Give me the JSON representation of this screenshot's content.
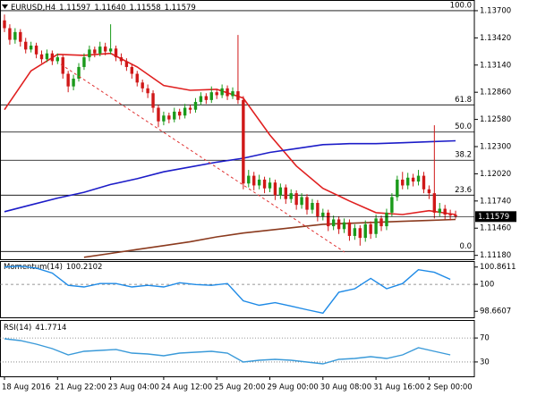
{
  "chart_data": [
    {
      "type": "candlestick",
      "symbol": "EURUSD,H4",
      "ohlc_labels": [
        "1.11597",
        "1.11640",
        "1.11558",
        "1.11579"
      ],
      "up_color": "#1a9a1a",
      "down_color": "#d01818",
      "categories": [
        "18 Aug 2016",
        null,
        null,
        null,
        null,
        null,
        null,
        null,
        null,
        null,
        "21 Aug 22:00",
        null,
        null,
        null,
        null,
        null,
        null,
        null,
        null,
        null,
        "23 Aug 04:00",
        null,
        null,
        null,
        null,
        null,
        null,
        null,
        null,
        null,
        "24 Aug 12:00",
        null,
        null,
        null,
        null,
        null,
        null,
        null,
        null,
        null,
        "25 Aug 20:00",
        null,
        null,
        null,
        null,
        null,
        null,
        null,
        null,
        null,
        "29 Aug 00:00",
        null,
        null,
        null,
        null,
        null,
        null,
        null,
        null,
        null,
        "30 Aug 08:00",
        null,
        null,
        null,
        null,
        null,
        null,
        null,
        null,
        null,
        "31 Aug 16:00",
        null,
        null,
        null,
        null,
        null,
        null,
        null,
        null,
        null,
        "2 Sep 00:00",
        null,
        null,
        null,
        null,
        null
      ],
      "open": [
        1.136,
        1.1352,
        1.134,
        1.1348,
        1.1338,
        1.133,
        1.1334,
        1.1325,
        1.132,
        1.1326,
        1.1318,
        1.1322,
        1.1305,
        1.1292,
        1.13,
        1.1312,
        1.1322,
        1.133,
        1.1326,
        1.1333,
        1.1328,
        1.1331,
        1.1322,
        1.1318,
        1.1312,
        1.1305,
        1.1296,
        1.129,
        1.1285,
        1.127,
        1.1256,
        1.1262,
        1.1258,
        1.1266,
        1.1262,
        1.127,
        1.1268,
        1.1276,
        1.1282,
        1.1278,
        1.1286,
        1.1283,
        1.129,
        1.1282,
        1.1287,
        1.1278,
        1.1192,
        1.12,
        1.119,
        1.1196,
        1.1187,
        1.1193,
        1.118,
        1.1188,
        1.1176,
        1.1182,
        1.117,
        1.1178,
        1.1165,
        1.1172,
        1.1158,
        1.1162,
        1.1148,
        1.1155,
        1.1145,
        1.1152,
        1.1138,
        1.1146,
        1.1136,
        1.115,
        1.114,
        1.1156,
        1.1148,
        1.1162,
        1.1178,
        1.1196,
        1.119,
        1.1198,
        1.1194,
        1.12,
        1.1186,
        1.1182,
        1.1162,
        1.1166,
        1.116,
        1.11597
      ],
      "high": [
        1.1366,
        1.1356,
        1.1352,
        1.1351,
        1.1342,
        1.1338,
        1.1337,
        1.1329,
        1.133,
        1.1329,
        1.1326,
        1.1325,
        1.1308,
        1.1304,
        1.1316,
        1.1326,
        1.1334,
        1.1333,
        1.1338,
        1.1337,
        1.1356,
        1.1334,
        1.1326,
        1.1321,
        1.1315,
        1.1308,
        1.1299,
        1.1294,
        1.1288,
        1.1273,
        1.1266,
        1.1265,
        1.127,
        1.1269,
        1.1274,
        1.1273,
        1.128,
        1.1286,
        1.1285,
        1.1292,
        1.1289,
        1.1294,
        1.1293,
        1.1291,
        1.1345,
        1.1282,
        1.1206,
        1.1204,
        1.1201,
        1.1199,
        1.1198,
        1.1196,
        1.1192,
        1.1191,
        1.1186,
        1.1185,
        1.1182,
        1.1181,
        1.1176,
        1.1175,
        1.1166,
        1.1165,
        1.1159,
        1.1158,
        1.1156,
        1.1155,
        1.115,
        1.1149,
        1.1154,
        1.1153,
        1.116,
        1.1159,
        1.1166,
        1.1182,
        1.12,
        1.1204,
        1.1203,
        1.1202,
        1.1206,
        1.1204,
        1.119,
        1.1252,
        1.1172,
        1.117,
        1.1165,
        1.1164
      ],
      "low": [
        1.1348,
        1.1335,
        1.1336,
        1.1333,
        1.1326,
        1.1327,
        1.1321,
        1.1316,
        1.1317,
        1.1314,
        1.1315,
        1.13,
        1.1286,
        1.1288,
        1.1297,
        1.1309,
        1.1318,
        1.1322,
        1.1323,
        1.1324,
        1.1325,
        1.1318,
        1.1314,
        1.1308,
        1.13,
        1.1292,
        1.1286,
        1.128,
        1.1265,
        1.125,
        1.1252,
        1.1254,
        1.1255,
        1.1258,
        1.1259,
        1.1264,
        1.1265,
        1.1273,
        1.1274,
        1.1275,
        1.1279,
        1.128,
        1.1278,
        1.1279,
        1.1274,
        1.1186,
        1.1188,
        1.1185,
        1.1186,
        1.1182,
        1.1183,
        1.1175,
        1.1176,
        1.1171,
        1.1172,
        1.1165,
        1.1166,
        1.116,
        1.1161,
        1.1153,
        1.1154,
        1.1143,
        1.1144,
        1.114,
        1.1141,
        1.1133,
        1.1134,
        1.1128,
        1.1132,
        1.1135,
        1.1136,
        1.1143,
        1.1144,
        1.1158,
        1.1174,
        1.1186,
        1.1186,
        1.1189,
        1.119,
        1.1182,
        1.1176,
        1.1156,
        1.1158,
        1.1155,
        1.1154,
        1.11558
      ],
      "close": [
        1.1352,
        1.134,
        1.1348,
        1.1338,
        1.133,
        1.1334,
        1.1325,
        1.132,
        1.1326,
        1.1318,
        1.1322,
        1.1305,
        1.1292,
        1.13,
        1.1312,
        1.1322,
        1.133,
        1.1326,
        1.1333,
        1.1328,
        1.1331,
        1.1322,
        1.1318,
        1.1312,
        1.1305,
        1.1296,
        1.129,
        1.1285,
        1.127,
        1.1256,
        1.1262,
        1.1258,
        1.1266,
        1.1262,
        1.127,
        1.1268,
        1.1276,
        1.1282,
        1.1278,
        1.1286,
        1.1283,
        1.129,
        1.1282,
        1.1287,
        1.1278,
        1.1192,
        1.12,
        1.119,
        1.1196,
        1.1187,
        1.1193,
        1.118,
        1.1188,
        1.1176,
        1.1182,
        1.117,
        1.1178,
        1.1165,
        1.1172,
        1.1158,
        1.1162,
        1.1148,
        1.1155,
        1.1145,
        1.1152,
        1.1138,
        1.1146,
        1.1136,
        1.115,
        1.114,
        1.1156,
        1.1148,
        1.1162,
        1.1178,
        1.1196,
        1.119,
        1.1198,
        1.1194,
        1.12,
        1.1186,
        1.1182,
        1.1162,
        1.1166,
        1.116,
        1.11597,
        1.11579
      ],
      "overlays": [
        {
          "color": "#e02020",
          "x": [
            0,
            5,
            10,
            15,
            20,
            25,
            30,
            35,
            40,
            45,
            50,
            55,
            60,
            65,
            70,
            75,
            80,
            85
          ],
          "values": [
            1.1268,
            1.1308,
            1.1325,
            1.1324,
            1.1326,
            1.1312,
            1.1293,
            1.1288,
            1.1289,
            1.128,
            1.1242,
            1.121,
            1.1187,
            1.1174,
            1.1162,
            1.116,
            1.1164,
            1.116
          ]
        },
        {
          "color": "#1c1cc8",
          "x": [
            0,
            5,
            10,
            15,
            20,
            25,
            30,
            35,
            40,
            45,
            50,
            55,
            60,
            65,
            70,
            75,
            80,
            85
          ],
          "values": [
            1.1163,
            1.117,
            1.1177,
            1.1183,
            1.1191,
            1.1197,
            1.1204,
            1.1209,
            1.1214,
            1.1218,
            1.1224,
            1.1228,
            1.1232,
            1.1233,
            1.1233,
            1.1234,
            1.1235,
            1.1236
          ]
        },
        {
          "color": "#8b3a1e",
          "x": [
            0,
            5,
            10,
            15,
            20,
            25,
            30,
            35,
            40,
            45,
            50,
            55,
            60,
            65,
            70,
            75,
            80,
            85
          ],
          "values": [
            null,
            null,
            null,
            1.1116,
            1.112,
            1.1124,
            1.1128,
            1.1132,
            1.1137,
            1.1141,
            1.1144,
            1.1147,
            1.115,
            1.1151,
            1.1152,
            1.1153,
            1.1154,
            1.1155
          ]
        }
      ],
      "fib_levels": [
        {
          "label": "100.0",
          "price": 1.137
        },
        {
          "label": "61.8",
          "price": 1.1273
        },
        {
          "label": "50.0",
          "price": 1.1245
        },
        {
          "label": "38.2",
          "price": 1.1216
        },
        {
          "label": "23.6",
          "price": 1.118
        },
        {
          "label": "0.0",
          "price": 1.1122
        }
      ],
      "ylim": [
        1.1114,
        1.1381
      ],
      "yticks": [
        {
          "value": 1.137,
          "label": "1.13700"
        },
        {
          "value": 1.1342,
          "label": "1.13420"
        },
        {
          "value": 1.1314,
          "label": "1.13140"
        },
        {
          "value": 1.1286,
          "label": "1.12860"
        },
        {
          "value": 1.1258,
          "label": "1.12580"
        },
        {
          "value": 1.123,
          "label": "1.12300"
        },
        {
          "value": 1.1202,
          "label": "1.12020"
        },
        {
          "value": 1.1174,
          "label": "1.11740"
        },
        {
          "value": 1.1146,
          "label": "1.11460"
        },
        {
          "value": 1.1118,
          "label": "1.11180"
        }
      ]
    },
    {
      "type": "line",
      "title": "Momentum(14)",
      "current": 100.2102,
      "color": "#1e8ae6",
      "level_style": "dashed",
      "x": [
        0,
        3,
        6,
        9,
        12,
        15,
        18,
        21,
        24,
        27,
        30,
        33,
        36,
        39,
        42,
        45,
        48,
        51,
        54,
        57,
        60,
        63,
        66,
        69,
        72,
        75,
        78,
        81,
        84
      ],
      "values": [
        100.86,
        100.9,
        100.81,
        100.56,
        99.95,
        99.87,
        100.04,
        100.04,
        99.87,
        99.95,
        99.87,
        100.08,
        99.99,
        99.95,
        100.04,
        99.18,
        98.96,
        99.09,
        98.92,
        98.74,
        98.57,
        99.61,
        99.78,
        100.3,
        99.78,
        100.04,
        100.73,
        100.6,
        100.25
      ],
      "levels": [
        100
      ],
      "ylim": [
        98.36,
        101.16
      ],
      "yticks": [
        100.8611,
        100,
        98.6607
      ]
    },
    {
      "type": "line",
      "title": "RSI(14)",
      "current": 41.7714,
      "color": "#3a9ad9",
      "level_style": "dotted",
      "x": [
        0,
        3,
        6,
        9,
        12,
        15,
        18,
        21,
        24,
        27,
        30,
        33,
        36,
        39,
        42,
        45,
        48,
        51,
        54,
        57,
        60,
        63,
        66,
        69,
        72,
        75,
        78,
        81,
        84
      ],
      "values": [
        68.7,
        65.7,
        59.7,
        52.3,
        41.8,
        47.8,
        49.3,
        50.8,
        44.8,
        43.3,
        40.3,
        44.8,
        46.3,
        47.8,
        44.8,
        29.9,
        32.9,
        34.4,
        32.9,
        29.9,
        26.9,
        34.4,
        35.8,
        38.8,
        35.8,
        41.8,
        53.7,
        47.8,
        41.8
      ],
      "levels": [
        70,
        30
      ],
      "ylim": [
        6,
        100
      ],
      "yticks": [
        70,
        30
      ]
    }
  ]
}
